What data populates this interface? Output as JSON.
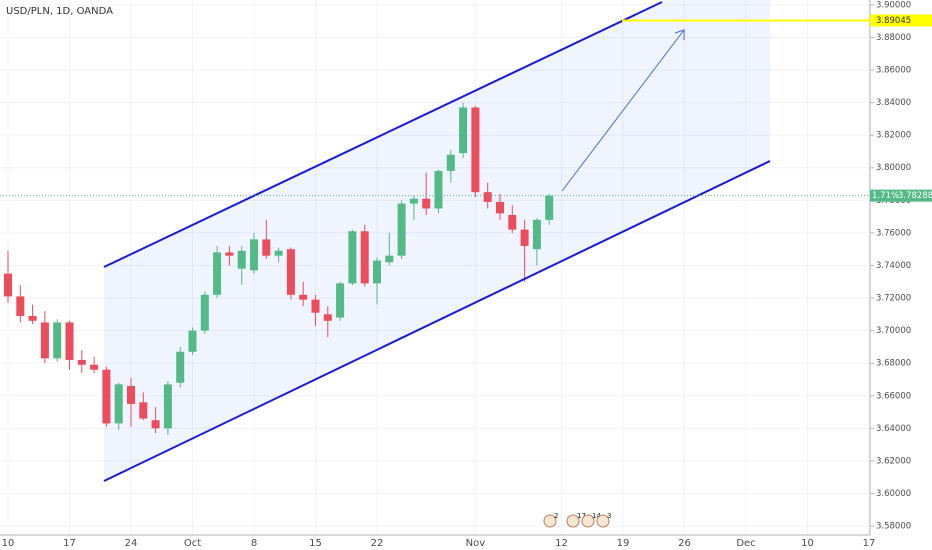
{
  "chart_data": {
    "type": "candlestick",
    "title": "USD/PLN, 1D, OANDA",
    "categories": [
      "10",
      null,
      null,
      null,
      null,
      "17",
      null,
      null,
      null,
      null,
      "24",
      null,
      null,
      null,
      null,
      "Oct",
      null,
      null,
      null,
      null,
      "8",
      null,
      null,
      null,
      null,
      "15",
      null,
      null,
      null,
      null,
      "22",
      null,
      null,
      null,
      null,
      null,
      null,
      null,
      "Nov",
      null,
      null,
      null,
      null,
      null,
      null,
      "12",
      null,
      null,
      null,
      null,
      "19",
      null,
      null,
      null,
      null,
      "26",
      null,
      null,
      null,
      null,
      "Dec",
      null,
      null,
      null,
      null,
      "10",
      null,
      null,
      null,
      null,
      "17"
    ],
    "open": [
      3.735,
      3.721,
      3.709,
      3.705,
      3.683,
      3.705,
      3.682,
      3.679,
      3.676,
      3.643,
      3.666,
      3.656,
      3.645,
      3.64,
      3.668,
      3.687,
      3.7,
      3.722,
      3.748,
      3.738,
      3.737,
      3.756,
      3.746,
      3.75,
      3.722,
      3.719,
      3.71,
      3.708,
      3.729,
      3.761,
      3.729,
      3.742,
      3.746,
      3.778,
      3.781,
      3.775,
      3.798,
      3.809,
      3.837,
      3.785,
      3.779,
      3.771,
      3.762,
      3.75,
      3.768,
      null,
      null,
      null,
      null,
      null,
      null,
      null,
      null,
      null,
      null,
      null,
      null,
      null,
      null,
      null,
      null,
      null,
      null,
      null,
      null,
      null,
      null,
      null,
      null,
      null,
      null
    ],
    "high": [
      3.749,
      3.728,
      3.716,
      3.712,
      3.707,
      3.706,
      3.688,
      3.684,
      3.678,
      3.668,
      3.671,
      3.662,
      3.653,
      3.669,
      3.69,
      3.702,
      3.724,
      3.752,
      3.752,
      3.752,
      3.76,
      3.768,
      3.751,
      3.751,
      3.73,
      3.722,
      3.715,
      3.73,
      3.762,
      3.765,
      3.745,
      3.76,
      3.78,
      3.783,
      3.797,
      3.799,
      3.811,
      3.84,
      3.838,
      3.791,
      3.784,
      3.777,
      3.768,
      3.769,
      3.784,
      null,
      null,
      null,
      null,
      null,
      null,
      null,
      null,
      null,
      null,
      null,
      null,
      null,
      null,
      null,
      null,
      null,
      null,
      null,
      null,
      null,
      null,
      null,
      null,
      null,
      null
    ],
    "low": [
      3.717,
      3.705,
      3.704,
      3.68,
      3.681,
      3.676,
      3.674,
      3.674,
      3.641,
      3.639,
      3.641,
      3.645,
      3.637,
      3.636,
      3.665,
      3.685,
      3.698,
      3.72,
      3.74,
      3.728,
      3.735,
      3.744,
      3.742,
      3.719,
      3.715,
      3.703,
      3.696,
      3.706,
      3.728,
      3.727,
      3.716,
      3.74,
      3.744,
      3.768,
      3.771,
      3.772,
      3.791,
      3.806,
      3.782,
      3.775,
      3.768,
      3.76,
      3.73,
      3.74,
      3.765,
      null,
      null,
      null,
      null,
      null,
      null,
      null,
      null,
      null,
      null,
      null,
      null,
      null,
      null,
      null,
      null,
      null,
      null,
      null,
      null,
      null,
      null,
      null,
      null,
      null,
      null
    ],
    "close": [
      3.721,
      3.709,
      3.706,
      3.683,
      3.705,
      3.682,
      3.679,
      3.676,
      3.643,
      3.667,
      3.655,
      3.646,
      3.64,
      3.667,
      3.687,
      3.7,
      3.722,
      3.748,
      3.746,
      3.749,
      3.756,
      3.746,
      3.749,
      3.722,
      3.719,
      3.711,
      3.706,
      3.729,
      3.761,
      3.729,
      3.743,
      3.746,
      3.778,
      3.781,
      3.775,
      3.798,
      3.808,
      3.837,
      3.785,
      3.779,
      3.772,
      3.762,
      3.752,
      3.768,
      3.78288,
      null,
      null,
      null,
      null,
      null,
      null,
      null,
      null,
      null,
      null,
      null,
      null,
      null,
      null,
      null,
      null,
      null,
      null,
      null,
      null,
      null,
      null,
      null,
      null,
      null,
      null
    ],
    "up_color": "#53b987",
    "down_color": "#eb4d5c",
    "ylim": [
      3.5745,
      3.903
    ],
    "yticks": [
      {
        "value": 3.58,
        "label": "3.58000"
      },
      {
        "value": 3.6,
        "label": "3.60000"
      },
      {
        "value": 3.62,
        "label": "3.62000"
      },
      {
        "value": 3.64,
        "label": "3.64000"
      },
      {
        "value": 3.66,
        "label": "3.66000"
      },
      {
        "value": 3.68,
        "label": "3.68000"
      },
      {
        "value": 3.7,
        "label": "3.70000"
      },
      {
        "value": 3.72,
        "label": "3.72000"
      },
      {
        "value": 3.74,
        "label": "3.74000"
      },
      {
        "value": 3.76,
        "label": "3.76000"
      },
      {
        "value": 3.78,
        "label": "3.78000"
      },
      {
        "value": 3.8,
        "label": "3.80000"
      },
      {
        "value": 3.82,
        "label": "3.82000"
      },
      {
        "value": 3.84,
        "label": "3.84000"
      },
      {
        "value": 3.86,
        "label": "3.86000"
      },
      {
        "value": 3.88,
        "label": "3.88000"
      },
      {
        "value": 3.9,
        "label": "3.90000"
      }
    ],
    "grid": true,
    "change_label": "1.71%",
    "target_price": 3.89045,
    "target_color": "#ffff00",
    "events": [
      "2",
      "17",
      "14",
      "3"
    ]
  }
}
